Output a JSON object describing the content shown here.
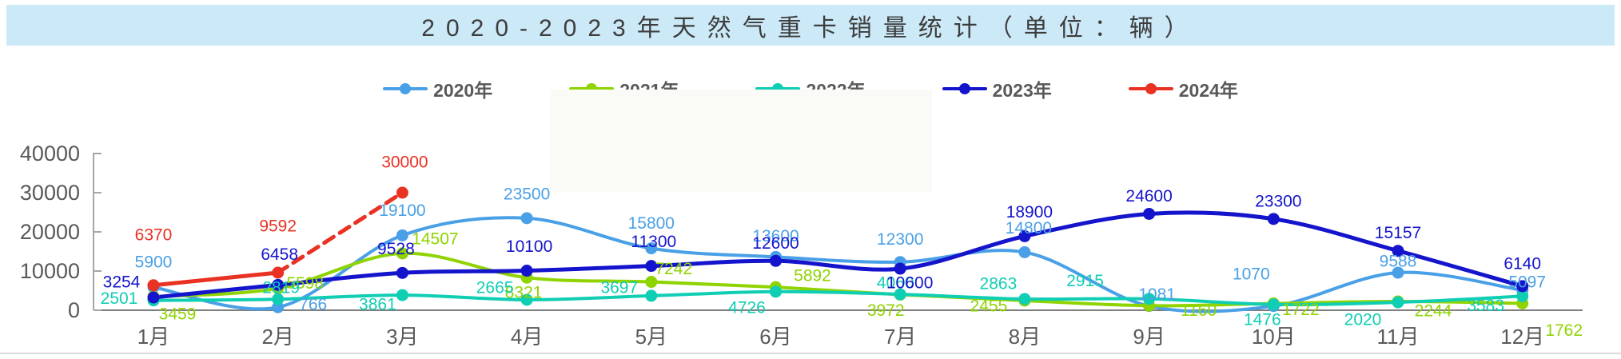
{
  "title": {
    "text": "2020-2023年天然气重卡销量统计（单位：辆）"
  },
  "chart_data": {
    "type": "line",
    "title": "2020-2023年天然气重卡销量统计（单位：辆）",
    "categories": [
      "1月",
      "2月",
      "3月",
      "4月",
      "5月",
      "6月",
      "7月",
      "8月",
      "9月",
      "10月",
      "11月",
      "12月"
    ],
    "xlabel": "",
    "ylabel": "",
    "ylim": [
      0,
      40000
    ],
    "y_ticks": [
      0,
      10000,
      20000,
      30000,
      40000
    ],
    "grid": false,
    "legend_position": "top",
    "series": [
      {
        "name": "2020年",
        "color": "#4aa0e6",
        "style": "solid",
        "values": [
          5900,
          766,
          19100,
          23500,
          15800,
          13600,
          12300,
          14800,
          1081,
          1070,
          9588,
          5097
        ]
      },
      {
        "name": "2021年",
        "color": "#8fd300",
        "style": "solid",
        "values": [
          3459,
          5598,
          14507,
          8321,
          7242,
          5892,
          3972,
          2455,
          1160,
          1722,
          2244,
          1762
        ]
      },
      {
        "name": "2022年",
        "color": "#0fceb4",
        "style": "solid",
        "values": [
          2501,
          2819,
          3861,
          2665,
          3697,
          4726,
          4060,
          2863,
          2915,
          1476,
          2020,
          3583
        ]
      },
      {
        "name": "2023年",
        "color": "#1414cc",
        "style": "solid",
        "values": [
          3254,
          6458,
          9528,
          10100,
          11300,
          12600,
          10600,
          18900,
          24600,
          23300,
          15157,
          6140
        ]
      },
      {
        "name": "2024年",
        "color": "#e93223",
        "style": "dashed_forecast",
        "values": [
          6370,
          9592,
          30000
        ]
      }
    ]
  }
}
